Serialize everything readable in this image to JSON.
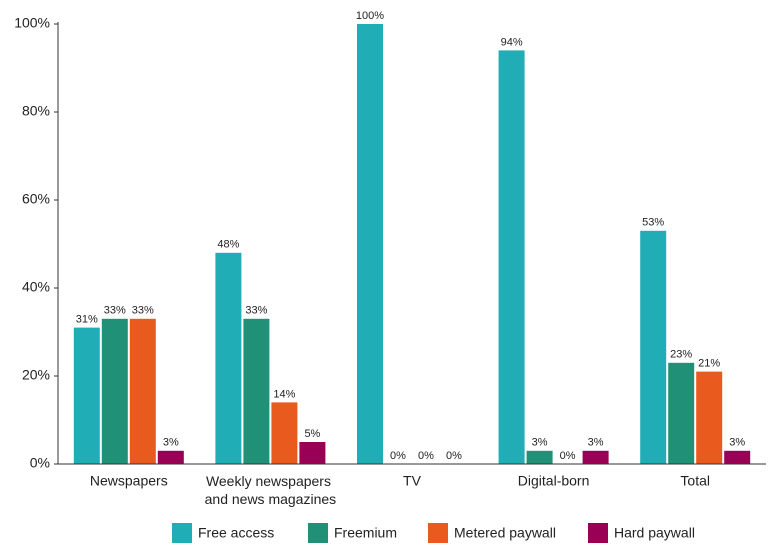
{
  "chart_data": {
    "type": "bar",
    "categories": [
      "Newspapers",
      "Weekly newspapers and news magazines",
      "TV",
      "Digital-born",
      "Total"
    ],
    "series": [
      {
        "name": "Free access",
        "color": "#20adb5",
        "values": [
          31,
          48,
          100,
          94,
          53
        ],
        "value_labels": [
          "31%",
          "48%",
          "100%",
          "94%",
          "53%"
        ]
      },
      {
        "name": "Freemium",
        "color": "#209176",
        "values": [
          33,
          33,
          0,
          3,
          23
        ],
        "value_labels": [
          "33%",
          "33%",
          "0%",
          "3%",
          "23%"
        ]
      },
      {
        "name": "Metered paywall",
        "color": "#e85a1e",
        "values": [
          33,
          14,
          0,
          0,
          21
        ],
        "value_labels": [
          "33%",
          "14%",
          "0%",
          "0%",
          "21%"
        ]
      },
      {
        "name": "Hard paywall",
        "color": "#990055",
        "values": [
          3,
          5,
          0,
          3,
          3
        ],
        "value_labels": [
          "3%",
          "5%",
          "0%",
          "3%",
          "3%"
        ]
      }
    ],
    "ylim": [
      0,
      100
    ],
    "yticks": [
      {
        "value": 0,
        "label": "0%"
      },
      {
        "value": 20,
        "label": "20%"
      },
      {
        "value": 40,
        "label": "40%"
      },
      {
        "value": 60,
        "label": "60%"
      },
      {
        "value": 80,
        "label": "80%"
      },
      {
        "value": 100,
        "label": "100%"
      }
    ],
    "grid": false
  }
}
